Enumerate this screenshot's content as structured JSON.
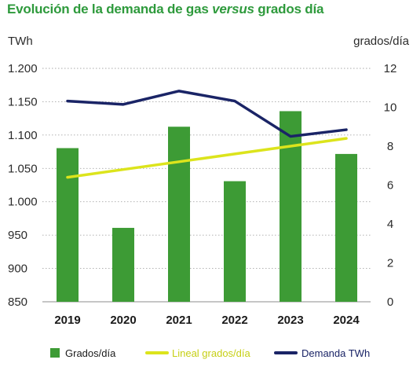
{
  "title": {
    "part1": "Evolución de la demanda de gas ",
    "part2": "versus",
    "part3": " grados día"
  },
  "chart_data": {
    "type": "bar",
    "title": "Evolución de la demanda de gas versus grados día",
    "categories": [
      "2019",
      "2020",
      "2021",
      "2022",
      "2023",
      "2024"
    ],
    "left_axis": {
      "label": "TWh",
      "range": [
        850,
        1200
      ],
      "ticks": [
        "850",
        "900",
        "950",
        "1.000",
        "1.050",
        "1.100",
        "1.150",
        "1.200"
      ],
      "tick_values": [
        850,
        900,
        950,
        1000,
        1050,
        1100,
        1150,
        1200
      ]
    },
    "right_axis": {
      "label": "grados/día",
      "range": [
        0,
        12
      ],
      "ticks": [
        "0",
        "2",
        "4",
        "6",
        "8",
        "10",
        "12"
      ],
      "tick_values": [
        0,
        2,
        4,
        6,
        8,
        10,
        12
      ]
    },
    "grid": true,
    "series": [
      {
        "name": "Grados/día",
        "type": "bar",
        "axis": "right",
        "color": "#3d9b35",
        "values": [
          7.9,
          3.8,
          9.0,
          6.2,
          9.8,
          7.6
        ]
      },
      {
        "name": "Lineal grados/día",
        "type": "line",
        "axis": "right",
        "color": "#dce41c",
        "values": [
          6.4,
          6.8,
          7.2,
          7.6,
          8.0,
          8.4
        ]
      },
      {
        "name": "Demanda TWh",
        "type": "line",
        "axis": "left",
        "color": "#1a2466",
        "values": [
          1151,
          1146,
          1166,
          1151,
          1098,
          1108
        ]
      }
    ],
    "legend": {
      "position": "bottom",
      "items": [
        "Grados/día",
        "Lineal grados/día",
        "Demanda TWh"
      ]
    }
  }
}
